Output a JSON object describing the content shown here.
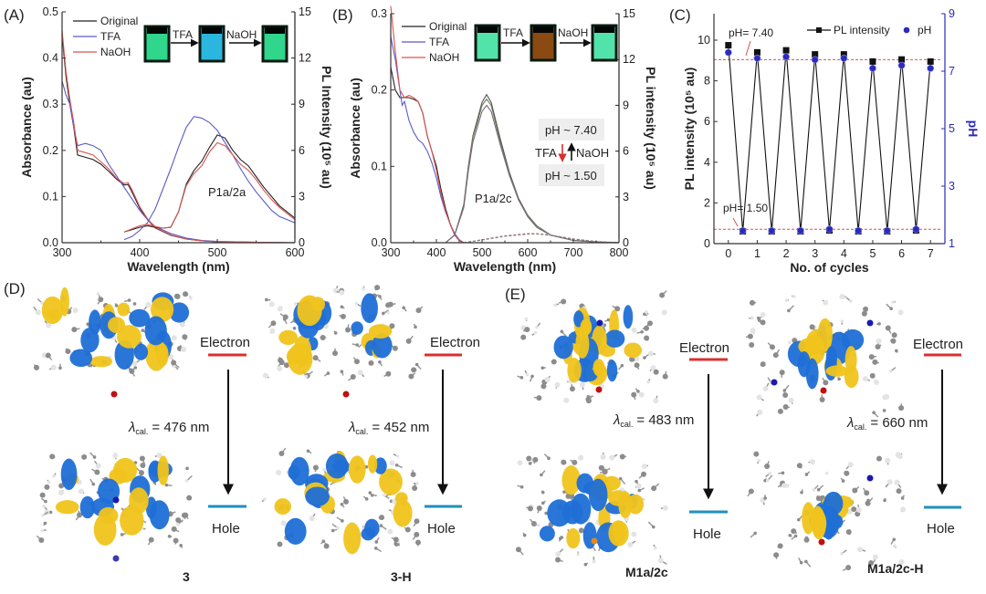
{
  "panels": {
    "A": {
      "label": "(A)",
      "compound": "P1a/2a",
      "inset": {
        "arrow1": "TFA",
        "arrow2": "NaOH",
        "vial_colors": [
          "#2fd68c",
          "#2bb6df",
          "#2fd68c"
        ]
      }
    },
    "B": {
      "label": "(B)",
      "compound": "P1a/2c",
      "inset": {
        "arrow1": "TFA",
        "arrow2": "NaOH",
        "vial_colors": [
          "#52e3ab",
          "#8a4a12",
          "#52e3ab"
        ]
      },
      "switch": {
        "high": "pH ~ 7.40",
        "low": "pH ~ 1.50",
        "down": "TFA",
        "up": "NaOH"
      }
    },
    "C": {
      "label": "(C)",
      "ann_high": "pH= 7.40",
      "ann_low": "pH= 1.50"
    },
    "D": {
      "label": "(D)",
      "items": [
        {
          "name": "3",
          "electron": "Electron",
          "hole": "Hole",
          "lambda_sym": "λ",
          "lambda_sub": "cal.",
          "lambda_val": "= 476 nm"
        },
        {
          "name": "3-H",
          "electron": "Electron",
          "hole": "Hole",
          "lambda_sym": "λ",
          "lambda_sub": "cal.",
          "lambda_val": "= 452 nm"
        }
      ]
    },
    "E": {
      "label": "(E)",
      "items": [
        {
          "name": "M1a/2c",
          "electron": "Electron",
          "hole": "Hole",
          "lambda_sym": "λ",
          "lambda_sub": "cal.",
          "lambda_val": "= 483 nm"
        },
        {
          "name": "M1a/2c-H",
          "electron": "Electron",
          "hole": "Hole",
          "lambda_sym": "λ",
          "lambda_sub": "cal.",
          "lambda_val": "= 660 nm"
        }
      ]
    }
  },
  "colors": {
    "electron_level": "#d93030",
    "hole_level": "#1f8fc0",
    "orbital_pos": "#1f6fd6",
    "orbital_neg": "#f0c41c",
    "ref_line": "#d9534f",
    "ph_marker": "#2b2bb8"
  },
  "chart_data": [
    {
      "type": "line",
      "title": "",
      "xlabel": "Wavelength (nm)",
      "ylabel": "Absorbance (au)",
      "y2label": "PL Intensity (10⁵ au)",
      "xlim": [
        300,
        600
      ],
      "ylim": [
        0,
        0.5
      ],
      "y2lim": [
        0,
        15
      ],
      "xticks": [
        "300",
        "400",
        "500",
        "600"
      ],
      "yticks": [
        "0.0",
        "0.1",
        "0.2",
        "0.3",
        "0.4",
        "0.5"
      ],
      "y2ticks": [
        "0",
        "3",
        "6",
        "9",
        "12",
        "15"
      ],
      "grid": false,
      "legend_position": "top-left",
      "legend": [
        "Original",
        "TFA",
        "NaOH"
      ],
      "series": [
        {
          "name": "Original",
          "kind": "absorbance",
          "axis": "left",
          "color": "#222222",
          "x": [
            300,
            305,
            310,
            315,
            320,
            330,
            340,
            350,
            360,
            370,
            380,
            385,
            390,
            400,
            410,
            420,
            440,
            460,
            480,
            500,
            550,
            600
          ],
          "y": [
            0.45,
            0.36,
            0.3,
            0.25,
            0.19,
            0.185,
            0.18,
            0.17,
            0.155,
            0.138,
            0.125,
            0.126,
            0.11,
            0.075,
            0.05,
            0.032,
            0.016,
            0.008,
            0.004,
            0.002,
            0.001,
            0
          ]
        },
        {
          "name": "TFA",
          "kind": "absorbance",
          "axis": "left",
          "color": "#5a5ac8",
          "x": [
            300,
            305,
            310,
            315,
            320,
            330,
            340,
            350,
            360,
            370,
            380,
            390,
            400,
            410,
            420,
            440,
            460,
            480,
            500,
            550,
            600
          ],
          "y": [
            0.35,
            0.32,
            0.3,
            0.25,
            0.21,
            0.215,
            0.21,
            0.2,
            0.17,
            0.145,
            0.12,
            0.095,
            0.07,
            0.05,
            0.035,
            0.02,
            0.01,
            0.005,
            0.003,
            0.001,
            0
          ]
        },
        {
          "name": "NaOH",
          "kind": "absorbance",
          "axis": "left",
          "color": "#d9534f",
          "x": [
            300,
            305,
            310,
            315,
            320,
            330,
            340,
            350,
            360,
            370,
            380,
            385,
            390,
            400,
            410,
            420,
            440,
            460,
            480,
            500,
            550,
            600
          ],
          "y": [
            0.46,
            0.37,
            0.31,
            0.26,
            0.2,
            0.195,
            0.19,
            0.175,
            0.16,
            0.14,
            0.128,
            0.13,
            0.115,
            0.078,
            0.052,
            0.033,
            0.017,
            0.008,
            0.004,
            0.002,
            0.001,
            0
          ]
        },
        {
          "name": "Original",
          "kind": "PL",
          "axis": "right",
          "color": "#222222",
          "x": [
            380,
            400,
            410,
            420,
            430,
            440,
            450,
            460,
            470,
            480,
            490,
            500,
            510,
            520,
            530,
            540,
            550,
            560,
            570,
            580,
            600
          ],
          "y": [
            0.7,
            1.0,
            1.1,
            1.0,
            0.95,
            1.0,
            2.0,
            3.8,
            4.7,
            5.3,
            6.2,
            7.0,
            6.8,
            6.0,
            5.4,
            5.0,
            4.3,
            3.6,
            3.0,
            2.4,
            1.6
          ]
        },
        {
          "name": "TFA",
          "kind": "PL",
          "axis": "right",
          "color": "#5a5ac8",
          "x": [
            380,
            390,
            400,
            410,
            420,
            430,
            440,
            450,
            460,
            470,
            480,
            490,
            500,
            510,
            520,
            530,
            540,
            550,
            560,
            570,
            580,
            600
          ],
          "y": [
            0.2,
            0.4,
            0.8,
            1.3,
            2.2,
            3.5,
            4.8,
            6.2,
            7.5,
            8.2,
            8.1,
            7.8,
            7.3,
            6.5,
            5.7,
            4.8,
            4.0,
            3.3,
            2.7,
            2.1,
            1.7,
            1.3
          ]
        },
        {
          "name": "NaOH",
          "kind": "PL",
          "axis": "right",
          "color": "#d9534f",
          "x": [
            380,
            400,
            410,
            420,
            430,
            440,
            450,
            460,
            470,
            480,
            490,
            500,
            510,
            520,
            530,
            540,
            550,
            560,
            570,
            580,
            600
          ],
          "y": [
            0.7,
            1.1,
            1.2,
            1.05,
            0.95,
            1.0,
            2.0,
            3.7,
            4.5,
            5.0,
            5.9,
            6.5,
            6.3,
            5.7,
            5.1,
            4.7,
            4.1,
            3.4,
            2.8,
            2.3,
            1.5
          ]
        }
      ]
    },
    {
      "type": "line",
      "title": "",
      "xlabel": "Wavelength (nm)",
      "ylabel": "Absorbance (au)",
      "y2label": "PL intensity (10⁵ au)",
      "xlim": [
        300,
        800
      ],
      "ylim": [
        0,
        0.3
      ],
      "y2lim": [
        0,
        15
      ],
      "xticks": [
        "300",
        "400",
        "500",
        "600",
        "700",
        "800"
      ],
      "yticks": [
        "0.0",
        "0.1",
        "0.2",
        "0.3"
      ],
      "y2ticks": [
        "0",
        "3",
        "6",
        "9",
        "12",
        "15"
      ],
      "grid": false,
      "legend_position": "top-left",
      "legend": [
        "Original",
        "TFA",
        "NaOH"
      ],
      "series": [
        {
          "name": "Original",
          "kind": "absorbance",
          "axis": "left",
          "color": "#222222",
          "x": [
            300,
            310,
            320,
            330,
            340,
            350,
            360,
            370,
            380,
            390,
            400,
            410,
            420,
            430,
            440,
            450,
            460
          ],
          "y": [
            0.23,
            0.2,
            0.19,
            0.19,
            0.19,
            0.188,
            0.185,
            0.17,
            0.14,
            0.12,
            0.1,
            0.07,
            0.045,
            0.025,
            0.01,
            0.003,
            0
          ]
        },
        {
          "name": "TFA",
          "kind": "absorbance",
          "axis": "left",
          "color": "#5a5ac8",
          "x": [
            300,
            310,
            320,
            325,
            330,
            340,
            350,
            360,
            370,
            380,
            390,
            400,
            410,
            420,
            430,
            440,
            450,
            460
          ],
          "y": [
            0.27,
            0.24,
            0.2,
            0.18,
            0.185,
            0.16,
            0.145,
            0.135,
            0.13,
            0.12,
            0.105,
            0.085,
            0.06,
            0.04,
            0.025,
            0.012,
            0.004,
            0
          ]
        },
        {
          "name": "NaOH",
          "kind": "absorbance",
          "axis": "left",
          "color": "#d9534f",
          "x": [
            300,
            310,
            320,
            330,
            340,
            350,
            360,
            370,
            380,
            390,
            400,
            410,
            420,
            430,
            440,
            450,
            460
          ],
          "y": [
            0.31,
            0.25,
            0.2,
            0.19,
            0.193,
            0.19,
            0.185,
            0.17,
            0.14,
            0.12,
            0.095,
            0.065,
            0.042,
            0.024,
            0.01,
            0.003,
            0
          ]
        },
        {
          "name": "",
          "kind": "PL",
          "axis": "right",
          "color": "#555555",
          "x": [
            420,
            440,
            460,
            470,
            480,
            490,
            500,
            510,
            520,
            530,
            540,
            560,
            580,
            600,
            620,
            650,
            700,
            750,
            800
          ],
          "y": [
            0,
            0.5,
            2.5,
            5.0,
            7.0,
            8.1,
            9.2,
            9.7,
            9.2,
            8.0,
            6.8,
            4.6,
            2.9,
            1.8,
            1.1,
            0.5,
            0.15,
            0.05,
            0
          ]
        },
        {
          "name": "",
          "kind": "PL",
          "axis": "right",
          "color": "#6b7a5a",
          "x": [
            420,
            440,
            460,
            470,
            480,
            490,
            500,
            510,
            520,
            530,
            540,
            560,
            580,
            600,
            620,
            650,
            700,
            750,
            800
          ],
          "y": [
            0,
            0.5,
            2.4,
            4.9,
            6.9,
            7.9,
            9.0,
            9.4,
            9.0,
            7.8,
            6.6,
            4.5,
            2.8,
            1.8,
            1.1,
            0.5,
            0.15,
            0.05,
            0
          ]
        },
        {
          "name": "",
          "kind": "PL",
          "axis": "right",
          "color": "#7a6a7a",
          "x": [
            420,
            440,
            460,
            470,
            480,
            490,
            500,
            510,
            520,
            530,
            540,
            560,
            580,
            600,
            620,
            650,
            700,
            750,
            800
          ],
          "y": [
            0,
            0.5,
            2.3,
            4.7,
            6.6,
            7.6,
            8.6,
            9.0,
            8.6,
            7.5,
            6.4,
            4.4,
            2.8,
            1.7,
            1.0,
            0.5,
            0.15,
            0.05,
            0
          ]
        },
        {
          "name": "",
          "kind": "PL-acid",
          "axis": "right",
          "color": "#c07070",
          "dashed": true,
          "x": [
            460,
            500,
            550,
            600,
            620,
            650,
            700,
            750,
            800
          ],
          "y": [
            0,
            0.2,
            0.45,
            0.6,
            0.6,
            0.5,
            0.25,
            0.08,
            0
          ]
        },
        {
          "name": "",
          "kind": "PL-acid",
          "axis": "right",
          "color": "#7a7a7a",
          "dashed": true,
          "x": [
            460,
            500,
            550,
            600,
            620,
            650,
            700,
            750,
            800
          ],
          "y": [
            0,
            0.18,
            0.42,
            0.57,
            0.58,
            0.48,
            0.24,
            0.07,
            0
          ]
        }
      ]
    },
    {
      "type": "line",
      "title": "",
      "xlabel": "No. of cycles",
      "ylabel": "PL intensity (10⁵ au)",
      "y2label": "pH",
      "xlim": [
        -0.5,
        7.5
      ],
      "ylim": [
        0,
        11.3
      ],
      "y2lim": [
        1,
        9
      ],
      "xticks": [
        "0",
        "1",
        "2",
        "3",
        "4",
        "5",
        "6",
        "7"
      ],
      "yticks": [
        "0",
        "2",
        "4",
        "6",
        "8",
        "10"
      ],
      "y2ticks": [
        "1",
        "3",
        "5",
        "7",
        "9"
      ],
      "grid": false,
      "legend_position": "top-right",
      "legend": [
        "PL intensity",
        "pH"
      ],
      "reference_lines": [
        {
          "axis": "right",
          "value": 7.4
        },
        {
          "axis": "right",
          "value": 1.5
        }
      ],
      "series": [
        {
          "name": "PL intensity",
          "axis": "left",
          "color": "#111111",
          "marker": "square",
          "x": [
            0,
            0.5,
            1,
            1.5,
            2,
            2.5,
            3,
            3.5,
            4,
            4.5,
            5,
            5.5,
            6,
            6.5,
            7
          ],
          "y": [
            9.75,
            0.6,
            9.4,
            0.6,
            9.5,
            0.6,
            9.3,
            0.65,
            9.3,
            0.6,
            8.95,
            0.6,
            9.05,
            0.65,
            8.95
          ]
        },
        {
          "name": "pH",
          "axis": "right",
          "color": "#2b2bb8",
          "marker": "circle",
          "x": [
            0,
            0.5,
            1,
            1.5,
            2,
            2.5,
            3,
            3.5,
            4,
            4.5,
            5,
            5.5,
            6,
            6.5,
            7
          ],
          "y": [
            7.65,
            1.45,
            7.45,
            1.45,
            7.5,
            1.45,
            7.4,
            1.5,
            7.45,
            1.45,
            7.1,
            1.45,
            7.2,
            1.5,
            7.1
          ]
        }
      ]
    }
  ]
}
